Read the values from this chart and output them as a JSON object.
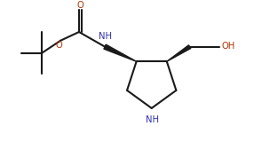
{
  "bg_color": "#ffffff",
  "line_color": "#1a1a1a",
  "atom_color_N": "#3030b0",
  "atom_color_O": "#b03000",
  "line_width": 1.5,
  "fig_width": 2.86,
  "fig_height": 1.6,
  "dpi": 100,
  "xlim": [
    0,
    10
  ],
  "ylim": [
    0,
    5.6
  ]
}
